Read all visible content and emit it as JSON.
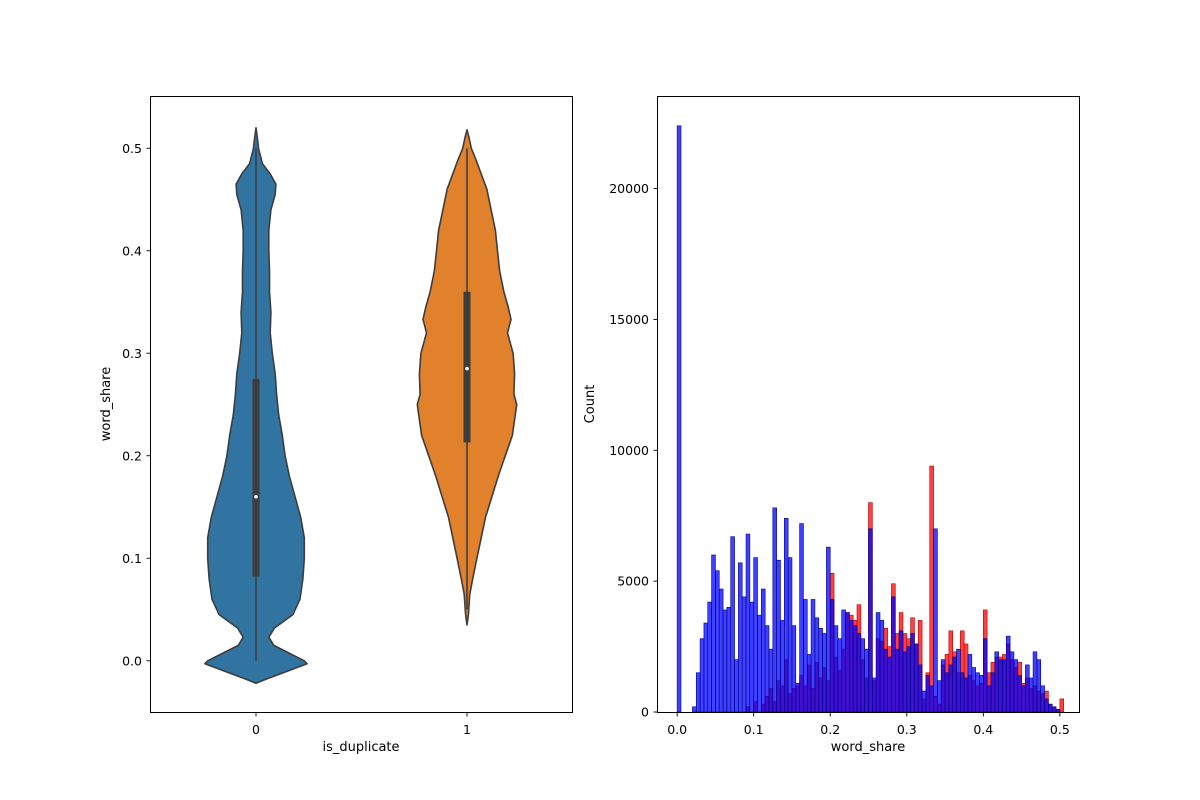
{
  "colors": {
    "violin_0": "#3274a1",
    "violin_1": "#e1812c",
    "violin_edge": "#3d3d3d",
    "hist_red_fill": "#ff0000",
    "hist_red_edge": "#b00000",
    "hist_blue_fill": "#0000ff",
    "hist_blue_edge": "#00008b"
  },
  "chart_data": [
    {
      "type": "violin",
      "xlabel": "is_duplicate",
      "ylabel": "word_share",
      "categories": [
        "0",
        "1"
      ],
      "ylim": [
        -0.05,
        0.55
      ],
      "yticks": [
        0.0,
        0.1,
        0.2,
        0.3,
        0.4,
        0.5
      ],
      "ytick_labels": [
        "0.0",
        "0.1",
        "0.2",
        "0.3",
        "0.4",
        "0.5"
      ],
      "grid": false,
      "violins": [
        {
          "category": "0",
          "median": 0.16,
          "q1": 0.082,
          "q3": 0.275,
          "whisker_low": 0.0,
          "whisker_high": 0.5,
          "density_profile": [
            [
              -0.022,
              0.0
            ],
            [
              -0.018,
              0.14
            ],
            [
              -0.01,
              0.45
            ],
            [
              -0.003,
              0.72
            ],
            [
              0.0,
              0.68
            ],
            [
              0.008,
              0.45
            ],
            [
              0.015,
              0.25
            ],
            [
              0.023,
              0.18
            ],
            [
              0.032,
              0.26
            ],
            [
              0.045,
              0.52
            ],
            [
              0.06,
              0.62
            ],
            [
              0.08,
              0.66
            ],
            [
              0.1,
              0.68
            ],
            [
              0.12,
              0.68
            ],
            [
              0.14,
              0.63
            ],
            [
              0.16,
              0.55
            ],
            [
              0.18,
              0.47
            ],
            [
              0.2,
              0.41
            ],
            [
              0.22,
              0.37
            ],
            [
              0.24,
              0.32
            ],
            [
              0.26,
              0.29
            ],
            [
              0.28,
              0.27
            ],
            [
              0.3,
              0.23
            ],
            [
              0.32,
              0.2
            ],
            [
              0.34,
              0.21
            ],
            [
              0.36,
              0.19
            ],
            [
              0.38,
              0.19
            ],
            [
              0.4,
              0.18
            ],
            [
              0.42,
              0.18
            ],
            [
              0.44,
              0.21
            ],
            [
              0.455,
              0.27
            ],
            [
              0.465,
              0.28
            ],
            [
              0.475,
              0.2
            ],
            [
              0.485,
              0.09
            ],
            [
              0.5,
              0.035
            ],
            [
              0.51,
              0.02
            ],
            [
              0.52,
              0.0
            ]
          ]
        },
        {
          "category": "1",
          "median": 0.285,
          "q1": 0.213,
          "q3": 0.36,
          "whisker_low": 0.05,
          "whisker_high": 0.5,
          "density_profile": [
            [
              0.035,
              0.0
            ],
            [
              0.045,
              0.02
            ],
            [
              0.055,
              0.03
            ],
            [
              0.065,
              0.04
            ],
            [
              0.08,
              0.08
            ],
            [
              0.1,
              0.14
            ],
            [
              0.12,
              0.2
            ],
            [
              0.14,
              0.26
            ],
            [
              0.16,
              0.35
            ],
            [
              0.18,
              0.44
            ],
            [
              0.2,
              0.54
            ],
            [
              0.22,
              0.64
            ],
            [
              0.24,
              0.68
            ],
            [
              0.25,
              0.7
            ],
            [
              0.26,
              0.66
            ],
            [
              0.28,
              0.67
            ],
            [
              0.3,
              0.65
            ],
            [
              0.32,
              0.57
            ],
            [
              0.333,
              0.62
            ],
            [
              0.345,
              0.58
            ],
            [
              0.36,
              0.52
            ],
            [
              0.38,
              0.46
            ],
            [
              0.4,
              0.43
            ],
            [
              0.42,
              0.4
            ],
            [
              0.44,
              0.34
            ],
            [
              0.46,
              0.28
            ],
            [
              0.475,
              0.2
            ],
            [
              0.49,
              0.12
            ],
            [
              0.5,
              0.06
            ],
            [
              0.51,
              0.03
            ],
            [
              0.518,
              0.0
            ]
          ]
        }
      ]
    },
    {
      "type": "histogram",
      "xlabel": "word_share",
      "ylabel": "Count",
      "xlim": [
        -0.025,
        0.525
      ],
      "ylim": [
        0,
        23500
      ],
      "xticks": [
        0.0,
        0.1,
        0.2,
        0.3,
        0.4,
        0.5
      ],
      "xtick_labels": [
        "0.0",
        "0.1",
        "0.2",
        "0.3",
        "0.4",
        "0.5"
      ],
      "yticks": [
        0,
        5000,
        10000,
        15000,
        20000
      ],
      "ytick_labels": [
        "0",
        "5000",
        "10000",
        "15000",
        "20000"
      ],
      "grid": false,
      "bin_width": 0.005,
      "series": [
        {
          "color": "red",
          "bins": [
            [
              0.09,
              200
            ],
            [
              0.1,
              400
            ],
            [
              0.11,
              300
            ],
            [
              0.115,
              600
            ],
            [
              0.12,
              900
            ],
            [
              0.125,
              400
            ],
            [
              0.13,
              1200
            ],
            [
              0.135,
              1000
            ],
            [
              0.14,
              2000
            ],
            [
              0.145,
              700
            ],
            [
              0.15,
              900
            ],
            [
              0.155,
              1000
            ],
            [
              0.16,
              1400
            ],
            [
              0.165,
              1000
            ],
            [
              0.17,
              1800
            ],
            [
              0.175,
              900
            ],
            [
              0.18,
              1900
            ],
            [
              0.185,
              1300
            ],
            [
              0.19,
              1700
            ],
            [
              0.195,
              1200
            ],
            [
              0.2,
              5300
            ],
            [
              0.205,
              2100
            ],
            [
              0.21,
              1600
            ],
            [
              0.215,
              2400
            ],
            [
              0.22,
              3800
            ],
            [
              0.225,
              3700
            ],
            [
              0.23,
              3500
            ],
            [
              0.235,
              4100
            ],
            [
              0.24,
              2000
            ],
            [
              0.245,
              1300
            ],
            [
              0.25,
              8000
            ],
            [
              0.255,
              1200
            ],
            [
              0.26,
              2800
            ],
            [
              0.265,
              2700
            ],
            [
              0.27,
              3200
            ],
            [
              0.275,
              2500
            ],
            [
              0.28,
              4900
            ],
            [
              0.285,
              3000
            ],
            [
              0.29,
              3800
            ],
            [
              0.295,
              3000
            ],
            [
              0.3,
              2800
            ],
            [
              0.305,
              3600
            ],
            [
              0.31,
              2600
            ],
            [
              0.315,
              3500
            ],
            [
              0.32,
              500
            ],
            [
              0.325,
              1500
            ],
            [
              0.33,
              9400
            ],
            [
              0.335,
              600
            ],
            [
              0.34,
              300
            ],
            [
              0.345,
              1800
            ],
            [
              0.35,
              2200
            ],
            [
              0.355,
              3100
            ],
            [
              0.36,
              2300
            ],
            [
              0.365,
              1500
            ],
            [
              0.37,
              3100
            ],
            [
              0.375,
              2600
            ],
            [
              0.38,
              1400
            ],
            [
              0.385,
              1200
            ],
            [
              0.39,
              1000
            ],
            [
              0.395,
              1100
            ],
            [
              0.4,
              3900
            ],
            [
              0.405,
              1500
            ],
            [
              0.41,
              1900
            ],
            [
              0.415,
              2100
            ],
            [
              0.42,
              2100
            ],
            [
              0.425,
              2200
            ],
            [
              0.43,
              2600
            ],
            [
              0.435,
              2000
            ],
            [
              0.44,
              1700
            ],
            [
              0.445,
              1900
            ],
            [
              0.45,
              1100
            ],
            [
              0.455,
              1300
            ],
            [
              0.46,
              900
            ],
            [
              0.465,
              1000
            ],
            [
              0.47,
              800
            ],
            [
              0.475,
              700
            ],
            [
              0.48,
              800
            ],
            [
              0.485,
              300
            ],
            [
              0.49,
              200
            ],
            [
              0.495,
              100
            ],
            [
              0.5,
              500
            ]
          ]
        },
        {
          "color": "blue",
          "bins": [
            [
              0.0,
              22400
            ],
            [
              0.005,
              0
            ],
            [
              0.01,
              0
            ],
            [
              0.015,
              0
            ],
            [
              0.02,
              200
            ],
            [
              0.025,
              1500
            ],
            [
              0.03,
              2800
            ],
            [
              0.035,
              3400
            ],
            [
              0.04,
              4200
            ],
            [
              0.045,
              6000
            ],
            [
              0.05,
              5400
            ],
            [
              0.055,
              4700
            ],
            [
              0.06,
              3900
            ],
            [
              0.065,
              4000
            ],
            [
              0.07,
              6700
            ],
            [
              0.075,
              2000
            ],
            [
              0.08,
              5700
            ],
            [
              0.085,
              4400
            ],
            [
              0.09,
              6800
            ],
            [
              0.095,
              4200
            ],
            [
              0.1,
              5900
            ],
            [
              0.105,
              3700
            ],
            [
              0.11,
              4700
            ],
            [
              0.115,
              3300
            ],
            [
              0.12,
              2400
            ],
            [
              0.125,
              7800
            ],
            [
              0.13,
              5800
            ],
            [
              0.135,
              3500
            ],
            [
              0.14,
              7400
            ],
            [
              0.145,
              5900
            ],
            [
              0.15,
              3300
            ],
            [
              0.155,
              1100
            ],
            [
              0.16,
              7200
            ],
            [
              0.165,
              4300
            ],
            [
              0.17,
              2200
            ],
            [
              0.175,
              4300
            ],
            [
              0.18,
              3600
            ],
            [
              0.185,
              3200
            ],
            [
              0.19,
              3000
            ],
            [
              0.195,
              6300
            ],
            [
              0.2,
              4300
            ],
            [
              0.205,
              3300
            ],
            [
              0.21,
              2800
            ],
            [
              0.215,
              3900
            ],
            [
              0.22,
              3800
            ],
            [
              0.225,
              3500
            ],
            [
              0.23,
              3300
            ],
            [
              0.235,
              3000
            ],
            [
              0.24,
              2800
            ],
            [
              0.245,
              2400
            ],
            [
              0.25,
              7000
            ],
            [
              0.255,
              1300
            ],
            [
              0.26,
              3800
            ],
            [
              0.265,
              3500
            ],
            [
              0.27,
              2400
            ],
            [
              0.275,
              2100
            ],
            [
              0.28,
              4400
            ],
            [
              0.285,
              2400
            ],
            [
              0.29,
              3100
            ],
            [
              0.295,
              2300
            ],
            [
              0.3,
              2500
            ],
            [
              0.305,
              3000
            ],
            [
              0.31,
              2600
            ],
            [
              0.315,
              1800
            ],
            [
              0.32,
              800
            ],
            [
              0.325,
              1400
            ],
            [
              0.33,
              1000
            ],
            [
              0.335,
              7000
            ],
            [
              0.34,
              1200
            ],
            [
              0.345,
              2000
            ],
            [
              0.35,
              1500
            ],
            [
              0.355,
              1800
            ],
            [
              0.36,
              2100
            ],
            [
              0.365,
              2400
            ],
            [
              0.37,
              1500
            ],
            [
              0.375,
              1300
            ],
            [
              0.38,
              2200
            ],
            [
              0.385,
              1700
            ],
            [
              0.39,
              1500
            ],
            [
              0.395,
              1400
            ],
            [
              0.4,
              2800
            ],
            [
              0.405,
              1000
            ],
            [
              0.41,
              1500
            ],
            [
              0.415,
              2300
            ],
            [
              0.42,
              2000
            ],
            [
              0.425,
              2000
            ],
            [
              0.43,
              2900
            ],
            [
              0.435,
              2300
            ],
            [
              0.44,
              2000
            ],
            [
              0.445,
              1400
            ],
            [
              0.45,
              1000
            ],
            [
              0.455,
              1800
            ],
            [
              0.46,
              1300
            ],
            [
              0.465,
              2300
            ],
            [
              0.47,
              2000
            ],
            [
              0.475,
              1000
            ],
            [
              0.48,
              500
            ],
            [
              0.485,
              300
            ],
            [
              0.49,
              200
            ],
            [
              0.495,
              100
            ]
          ]
        }
      ]
    }
  ]
}
